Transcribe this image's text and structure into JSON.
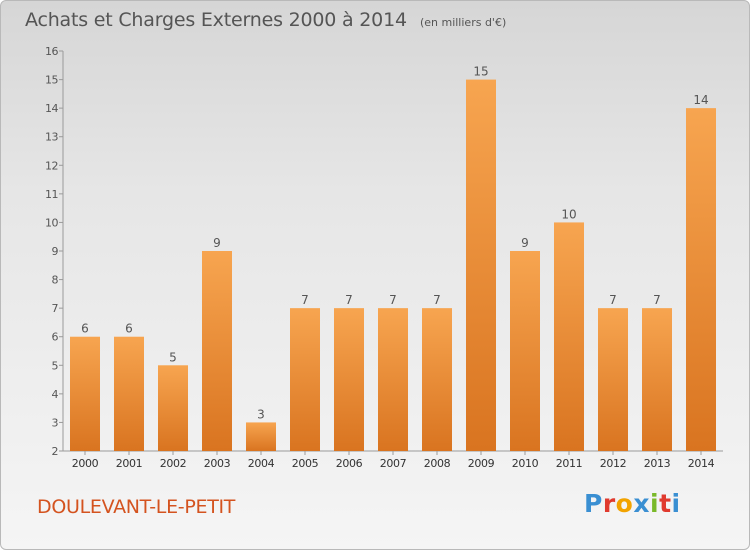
{
  "header": {
    "title": "Achats et Charges Externes 2000 à 2014",
    "subtitle": "(en milliers d'€)"
  },
  "footer": {
    "commune": "DOULEVANT-LE-PETIT",
    "logo_text": "Proxiti",
    "logo_colors": [
      "#3a8fd2",
      "#e03a2e",
      "#f2a300",
      "#3a8fd2",
      "#7ab929",
      "#e03a2e",
      "#3a8fd2"
    ]
  },
  "colors": {
    "bar_top": "#f7a550",
    "bar_bottom": "#d97420",
    "commune": "#d4531f",
    "text": "#555555"
  },
  "chart_data": {
    "type": "bar",
    "categories": [
      "2000",
      "2001",
      "2002",
      "2003",
      "2004",
      "2005",
      "2006",
      "2007",
      "2008",
      "2009",
      "2010",
      "2011",
      "2012",
      "2013",
      "2014"
    ],
    "values": [
      6,
      6,
      5,
      9,
      3,
      7,
      7,
      7,
      7,
      15,
      9,
      10,
      7,
      7,
      14
    ],
    "ylim": [
      2,
      16
    ],
    "yticks": [
      2,
      3,
      4,
      5,
      6,
      7,
      8,
      9,
      10,
      11,
      12,
      13,
      14,
      15,
      16
    ],
    "grid": false,
    "legend": "none"
  }
}
